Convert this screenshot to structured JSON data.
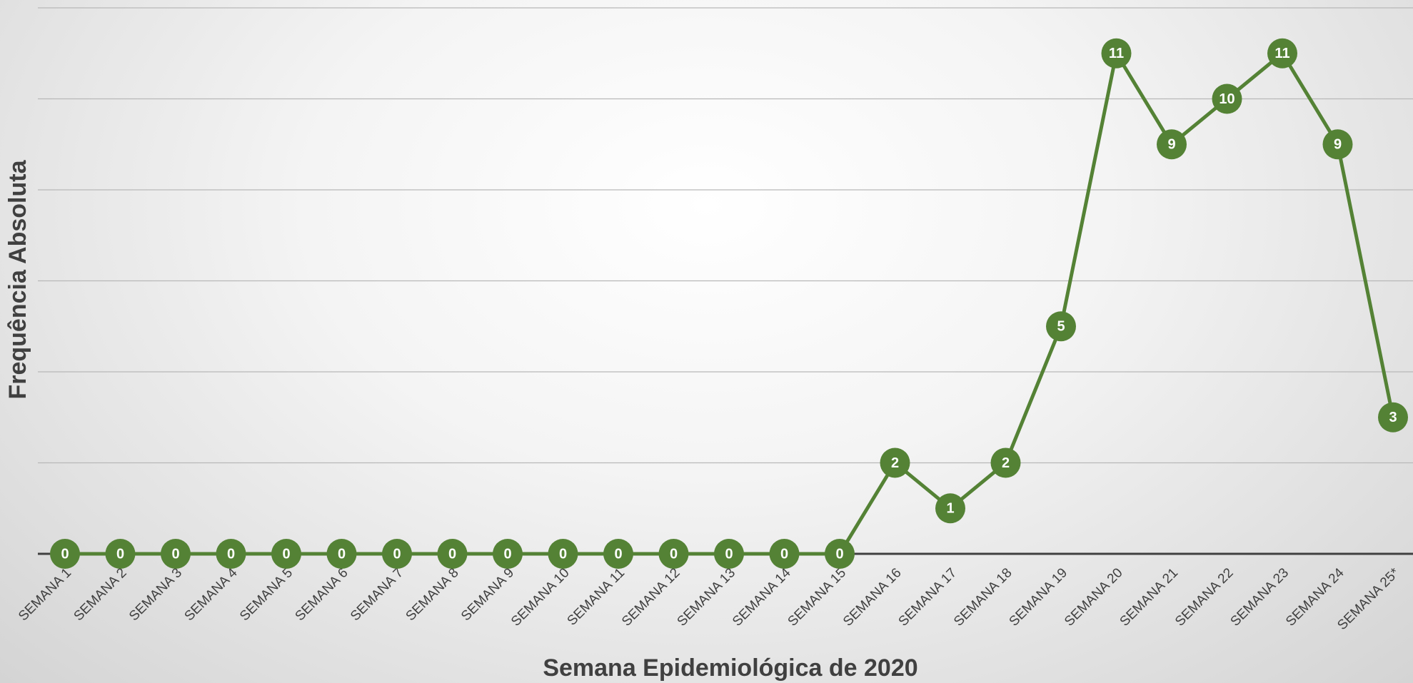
{
  "chart_data": {
    "type": "line",
    "x_label": "Semana Epidemiológica de 2020",
    "y_label": "Frequência Absoluta",
    "categories": [
      "SEMANA 1",
      "SEMANA 2",
      "SEMANA 3",
      "SEMANA 4",
      "SEMANA 5",
      "SEMANA 6",
      "SEMANA 7",
      "SEMANA 8",
      "SEMANA 9",
      "SEMANA 10",
      "SEMANA 11",
      "SEMANA 12",
      "SEMANA 13",
      "SEMANA 14",
      "SEMANA 15",
      "SEMANA 16",
      "SEMANA 17",
      "SEMANA 18",
      "SEMANA 19",
      "SEMANA 20",
      "SEMANA 21",
      "SEMANA 22",
      "SEMANA 23",
      "SEMANA 24",
      "SEMANA 25*"
    ],
    "values": [
      0,
      0,
      0,
      0,
      0,
      0,
      0,
      0,
      0,
      0,
      0,
      0,
      0,
      0,
      0,
      2,
      1,
      2,
      5,
      11,
      9,
      10,
      11,
      9,
      3
    ],
    "color": "#548235",
    "ylim": [
      0,
      12
    ],
    "yticks": [
      0,
      2,
      4,
      6,
      8,
      10,
      12
    ],
    "grid": true
  }
}
